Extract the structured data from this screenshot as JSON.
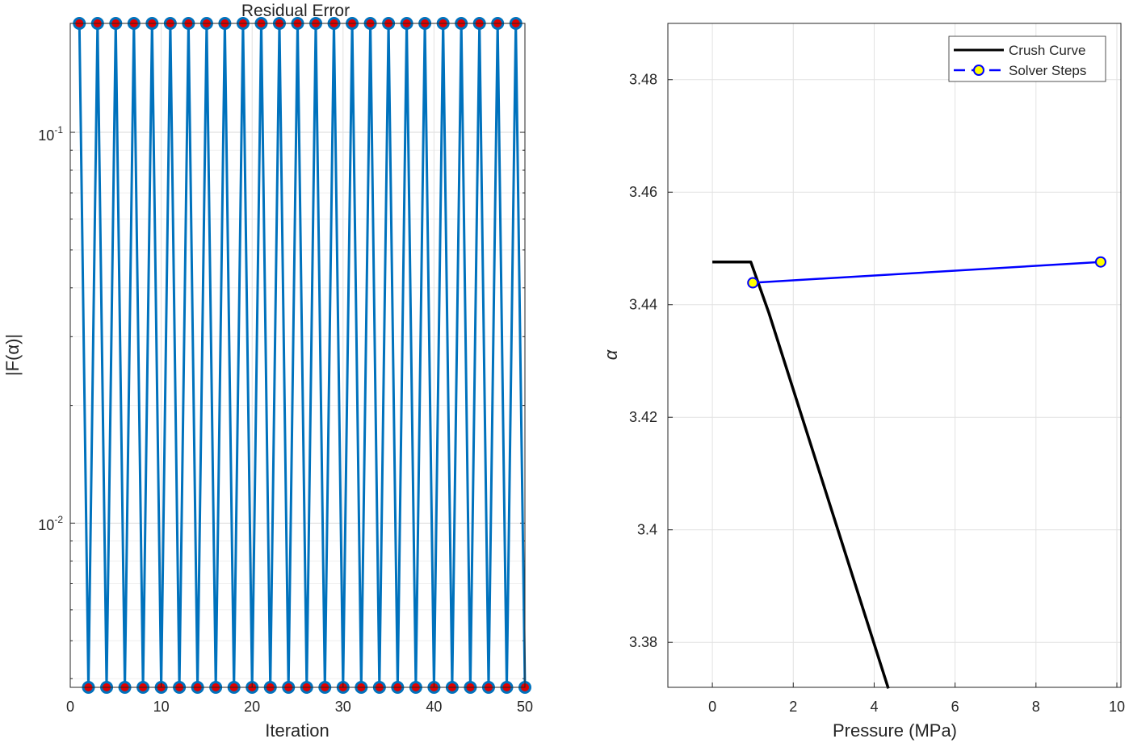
{
  "chart_data": [
    {
      "type": "line",
      "title": "Residual Error",
      "xlabel": "Iteration",
      "ylabel": "|F(α)|",
      "xlim": [
        0,
        50
      ],
      "ylim": [
        0.0038,
        0.19
      ],
      "yscale": "log",
      "grid": true,
      "xticks": [
        0,
        10,
        20,
        30,
        40,
        50
      ],
      "xtick_labels": [
        "0",
        "10",
        "20",
        "30",
        "40",
        "50"
      ],
      "yticks": [
        0.01,
        0.1
      ],
      "ytick_labels": [
        {
          "base": "10",
          "exp": "-2"
        },
        {
          "base": "10",
          "exp": "-1"
        }
      ],
      "series": [
        {
          "color": "#0072BD",
          "marker_face": "#e00000",
          "x": [
            1,
            2,
            3,
            4,
            5,
            6,
            7,
            8,
            9,
            10,
            11,
            12,
            13,
            14,
            15,
            16,
            17,
            18,
            19,
            20,
            21,
            22,
            23,
            24,
            25,
            26,
            27,
            28,
            29,
            30,
            31,
            32,
            33,
            34,
            35,
            36,
            37,
            38,
            39,
            40,
            41,
            42,
            43,
            44,
            45,
            46,
            47,
            48,
            49,
            50
          ],
          "y": [
            0.19,
            0.0038,
            0.19,
            0.0038,
            0.19,
            0.0038,
            0.19,
            0.0038,
            0.19,
            0.0038,
            0.19,
            0.0038,
            0.19,
            0.0038,
            0.19,
            0.0038,
            0.19,
            0.0038,
            0.19,
            0.0038,
            0.19,
            0.0038,
            0.19,
            0.0038,
            0.19,
            0.0038,
            0.19,
            0.0038,
            0.19,
            0.0038,
            0.19,
            0.0038,
            0.19,
            0.0038,
            0.19,
            0.0038,
            0.19,
            0.0038,
            0.19,
            0.0038,
            0.19,
            0.0038,
            0.19,
            0.0038,
            0.19,
            0.0038,
            0.19,
            0.0038,
            0.19,
            0.0038
          ]
        }
      ]
    },
    {
      "type": "line",
      "title": "",
      "xlabel": "Pressure (MPa)",
      "ylabel": "α",
      "xlim": [
        -1.1,
        10.1
      ],
      "ylim": [
        3.372,
        3.49
      ],
      "grid": true,
      "legend_position": "top-right",
      "xticks": [
        0,
        2,
        4,
        6,
        8,
        10
      ],
      "xtick_labels": [
        "0",
        "2",
        "4",
        "6",
        "8",
        "10"
      ],
      "yticks": [
        3.38,
        3.4,
        3.42,
        3.44,
        3.46,
        3.48
      ],
      "ytick_labels": [
        "3.38",
        "3.4",
        "3.42",
        "3.44",
        "3.46",
        "3.48"
      ],
      "series": [
        {
          "name": "Crush Curve",
          "color": "#000000",
          "x": [
            0,
            0.95,
            1.4,
            4.35
          ],
          "y": [
            3.4476,
            3.4476,
            3.4385,
            3.3718
          ]
        },
        {
          "name": "Solver Steps",
          "color": "#0000FF",
          "marker_face": "#FFFF00",
          "x": [
            1.0,
            9.6
          ],
          "y": [
            3.4439,
            3.4476
          ]
        }
      ]
    }
  ]
}
